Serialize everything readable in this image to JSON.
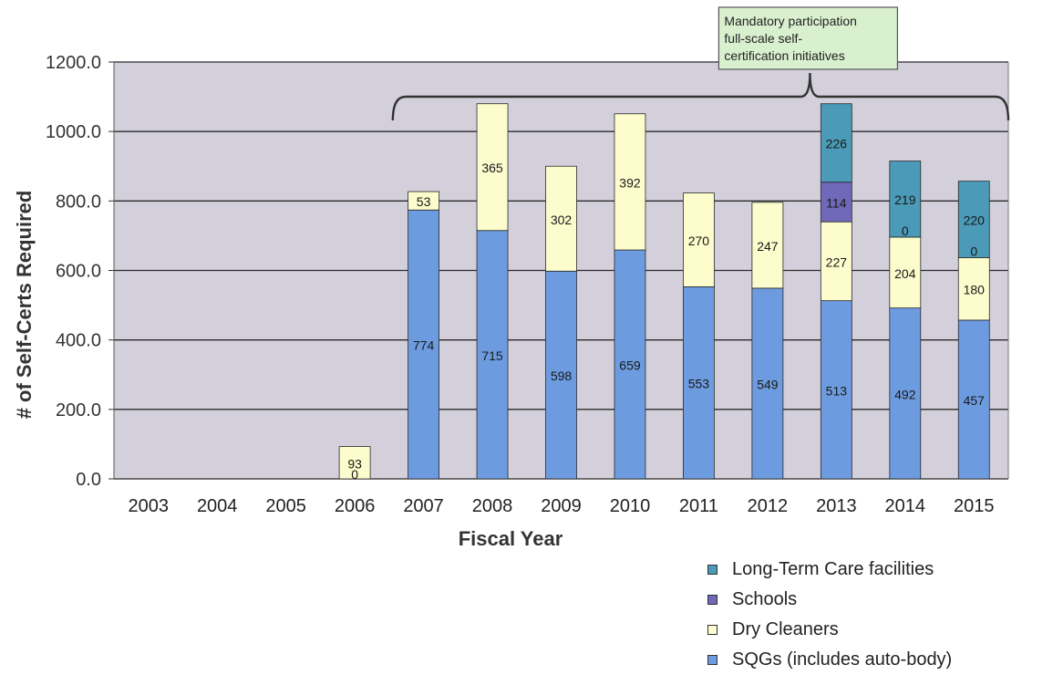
{
  "chart_data": {
    "type": "bar",
    "stacked": true,
    "title": "",
    "xlabel": "Fiscal Year",
    "ylabel": "# of Self-Certs Required",
    "ylim": [
      0,
      1200
    ],
    "y_ticks": [
      "0.0",
      "200.0",
      "400.0",
      "600.0",
      "800.0",
      "1000.0",
      "1200.0"
    ],
    "grid": true,
    "legend_position": "bottom-right",
    "categories": [
      "2003",
      "2004",
      "2005",
      "2006",
      "2007",
      "2008",
      "2009",
      "2010",
      "2011",
      "2012",
      "2013",
      "2014",
      "2015"
    ],
    "series": [
      {
        "name": "SQGs (includes auto-body)",
        "color": "#6d9be0",
        "values": [
          null,
          null,
          null,
          0,
          774,
          715,
          598,
          659,
          553,
          549,
          513,
          492,
          457
        ],
        "labels": [
          "",
          "",
          "",
          "0",
          "774",
          "715",
          "598",
          "659",
          "553",
          "549",
          "513",
          "492",
          "457"
        ]
      },
      {
        "name": "Dry Cleaners",
        "color": "#fcfccc",
        "values": [
          null,
          null,
          null,
          93,
          53,
          365,
          302,
          392,
          270,
          247,
          227,
          204,
          180
        ],
        "labels": [
          "",
          "",
          "",
          "93",
          "53",
          "365",
          "302",
          "392",
          "270",
          "247",
          "227",
          "204",
          "180"
        ]
      },
      {
        "name": "Schools",
        "color": "#7068b8",
        "values": [
          null,
          null,
          null,
          null,
          null,
          null,
          null,
          null,
          null,
          null,
          114,
          0,
          0
        ],
        "labels": [
          "",
          "",
          "",
          "",
          "",
          "",
          "",
          "",
          "",
          "",
          "114",
          "0",
          "0"
        ]
      },
      {
        "name": "Long-Term Care facilities",
        "color": "#4a9ab8",
        "values": [
          null,
          null,
          null,
          null,
          null,
          null,
          null,
          null,
          null,
          null,
          226,
          219,
          220
        ],
        "labels": [
          "",
          "",
          "",
          "",
          "",
          "",
          "",
          "",
          "",
          "",
          "226",
          "219",
          "220"
        ]
      }
    ],
    "legend_order": [
      "Long-Term Care facilities",
      "Schools",
      "Dry Cleaners",
      "SQGs (includes auto-body)"
    ],
    "annotation": {
      "text_lines": [
        "Mandatory participation",
        "full-scale self-",
        "certification initiatives"
      ],
      "span": [
        "2007",
        "2015"
      ],
      "box_color": "#d9f0cf"
    },
    "plot_bg_color": "#d3d0db"
  }
}
